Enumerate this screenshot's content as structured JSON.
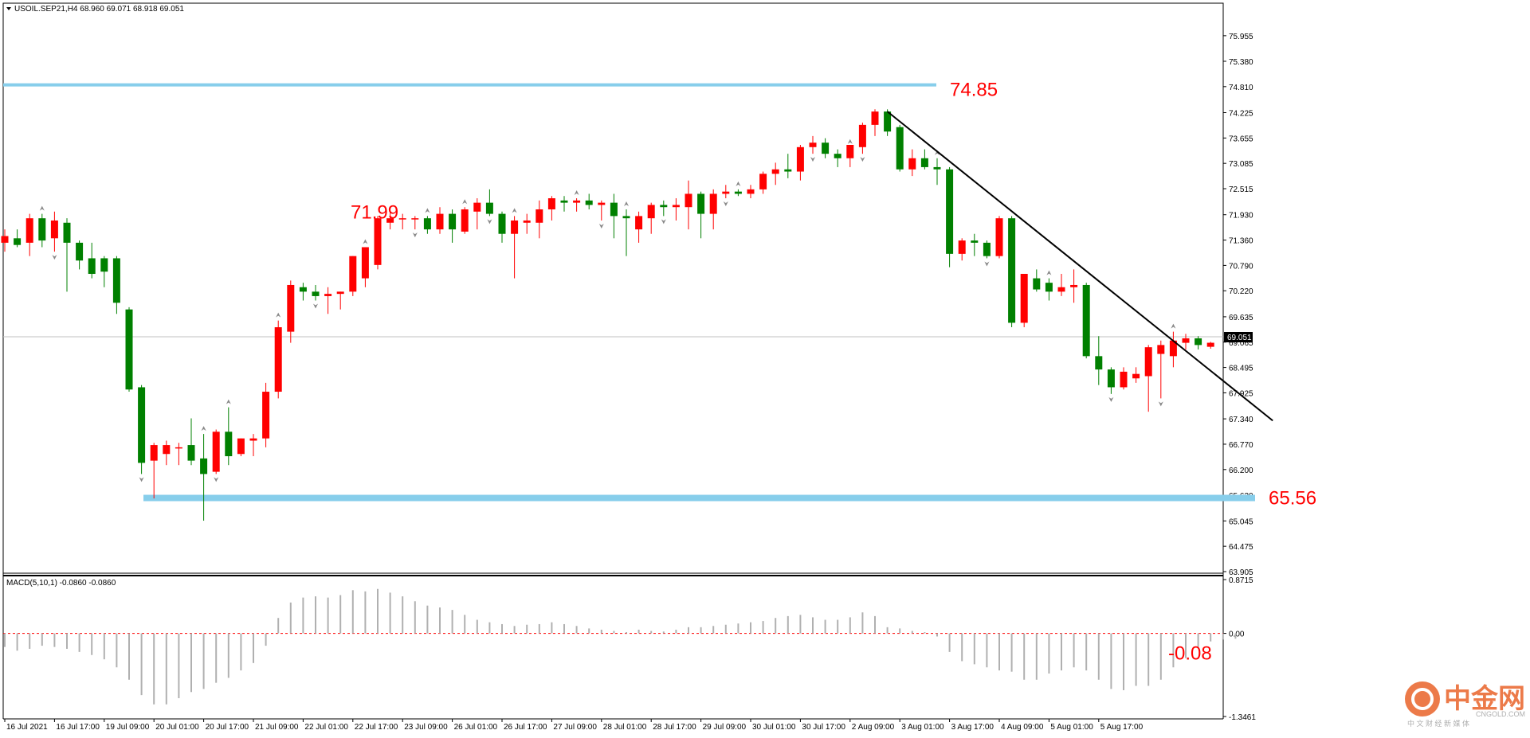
{
  "header": {
    "symbol_line": "USOIL.SEP21,H4  68.960 69.071 68.918 69.051",
    "macd_line": "MACD(5,10,1) -0.0860 -0.0860"
  },
  "watermark": {
    "cn_text": "中金网",
    "url_text": "CNGOLD.COM",
    "slogan": "中 文 财 经 新 媒 体"
  },
  "colors": {
    "bull": "#ff0000",
    "bear": "#008000",
    "level": "#87ceeb",
    "trend": "#000000",
    "annotation": "#ff0000",
    "grid": "#c8c8c8",
    "zero": "#ff0000"
  },
  "chart_data": [
    {
      "type": "candlestick",
      "symbol": "USOIL.SEP21",
      "timeframe": "H4",
      "last_price": "69.051",
      "ylim": [
        63.905,
        76.4
      ],
      "y_ticks": [
        "75.955",
        "75.380",
        "74.810",
        "74.225",
        "73.655",
        "73.085",
        "72.515",
        "71.930",
        "71.360",
        "70.790",
        "70.220",
        "69.635",
        "69.065",
        "68.495",
        "67.925",
        "67.340",
        "66.770",
        "66.200",
        "65.620",
        "65.045",
        "64.475",
        "63.905"
      ],
      "x_ticks": [
        "16 Jul 2021",
        "16 Jul 17:00",
        "19 Jul 09:00",
        "20 Jul 01:00",
        "20 Jul 17:00",
        "21 Jul 09:00",
        "22 Jul 01:00",
        "22 Jul 17:00",
        "23 Jul 09:00",
        "26 Jul 01:00",
        "26 Jul 17:00",
        "27 Jul 09:00",
        "28 Jul 01:00",
        "28 Jul 17:00",
        "29 Jul 09:00",
        "30 Jul 01:00",
        "30 Jul 17:00",
        "2 Aug 09:00",
        "3 Aug 01:00",
        "3 Aug 17:00",
        "4 Aug 09:00",
        "5 Aug 01:00",
        "5 Aug 17:00"
      ],
      "candles": [
        [
          71.3,
          71.6,
          71.1,
          71.45
        ],
        [
          71.4,
          71.6,
          71.2,
          71.25
        ],
        [
          71.3,
          71.95,
          71.0,
          71.85
        ],
        [
          71.85,
          71.95,
          71.2,
          71.35
        ],
        [
          71.4,
          72.0,
          71.1,
          71.8
        ],
        [
          71.75,
          71.85,
          70.2,
          71.3
        ],
        [
          71.3,
          71.35,
          70.7,
          70.9
        ],
        [
          70.95,
          71.3,
          70.5,
          70.6
        ],
        [
          70.95,
          71.0,
          70.3,
          70.65
        ],
        [
          70.95,
          71.0,
          69.7,
          69.95
        ],
        [
          69.8,
          69.85,
          67.95,
          68.0
        ],
        [
          68.05,
          68.1,
          66.1,
          66.35
        ],
        [
          66.4,
          66.8,
          65.55,
          66.75
        ],
        [
          66.55,
          66.85,
          66.3,
          66.75
        ],
        [
          66.7,
          66.8,
          66.3,
          66.7
        ],
        [
          66.75,
          67.35,
          66.3,
          66.4
        ],
        [
          66.45,
          67.0,
          65.05,
          66.1
        ],
        [
          66.15,
          67.1,
          66.1,
          67.05
        ],
        [
          67.05,
          67.6,
          66.3,
          66.5
        ],
        [
          66.55,
          66.9,
          66.5,
          66.9
        ],
        [
          66.85,
          67.0,
          66.5,
          66.9
        ],
        [
          66.9,
          68.15,
          66.7,
          67.95
        ],
        [
          67.95,
          69.55,
          67.8,
          69.4
        ],
        [
          69.3,
          70.45,
          69.05,
          70.35
        ],
        [
          70.3,
          70.4,
          70.0,
          70.2
        ],
        [
          70.2,
          70.35,
          70.0,
          70.1
        ],
        [
          70.1,
          70.3,
          69.7,
          70.15
        ],
        [
          70.15,
          70.2,
          69.8,
          70.2
        ],
        [
          70.2,
          71.0,
          70.1,
          71.0
        ],
        [
          70.5,
          71.2,
          70.3,
          71.2
        ],
        [
          70.8,
          71.9,
          70.7,
          71.85
        ],
        [
          71.75,
          72.0,
          71.6,
          71.85
        ],
        [
          71.85,
          71.95,
          71.6,
          71.85
        ],
        [
          71.85,
          71.9,
          71.6,
          71.85
        ],
        [
          71.85,
          71.9,
          71.5,
          71.6
        ],
        [
          71.6,
          72.1,
          71.5,
          71.95
        ],
        [
          71.95,
          72.05,
          71.3,
          71.6
        ],
        [
          71.55,
          72.1,
          71.5,
          72.05
        ],
        [
          72.0,
          72.3,
          71.6,
          72.2
        ],
        [
          72.2,
          72.5,
          71.9,
          71.95
        ],
        [
          71.95,
          72.0,
          71.3,
          71.5
        ],
        [
          71.5,
          71.9,
          70.5,
          71.8
        ],
        [
          71.75,
          71.95,
          71.5,
          71.8
        ],
        [
          71.75,
          72.25,
          71.4,
          72.05
        ],
        [
          72.05,
          72.35,
          71.8,
          72.3
        ],
        [
          72.25,
          72.35,
          72.0,
          72.2
        ],
        [
          72.2,
          72.3,
          72.0,
          72.25
        ],
        [
          72.25,
          72.4,
          72.05,
          72.15
        ],
        [
          72.15,
          72.25,
          71.8,
          72.2
        ],
        [
          72.2,
          72.4,
          71.4,
          71.9
        ],
        [
          71.9,
          72.05,
          71.0,
          71.85
        ],
        [
          71.6,
          72.0,
          71.3,
          71.9
        ],
        [
          71.85,
          72.2,
          71.5,
          72.15
        ],
        [
          72.15,
          72.25,
          71.9,
          72.1
        ],
        [
          72.1,
          72.3,
          71.8,
          72.15
        ],
        [
          72.1,
          72.7,
          71.6,
          72.4
        ],
        [
          72.4,
          72.45,
          71.4,
          71.95
        ],
        [
          71.95,
          72.5,
          71.6,
          72.4
        ],
        [
          72.4,
          72.6,
          72.3,
          72.45
        ],
        [
          72.45,
          72.5,
          72.35,
          72.4
        ],
        [
          72.4,
          72.6,
          72.3,
          72.5
        ],
        [
          72.5,
          72.9,
          72.4,
          72.85
        ],
        [
          72.85,
          73.1,
          72.6,
          72.95
        ],
        [
          72.95,
          73.3,
          72.75,
          72.9
        ],
        [
          72.9,
          73.5,
          72.7,
          73.45
        ],
        [
          73.45,
          73.7,
          73.3,
          73.55
        ],
        [
          73.55,
          73.65,
          73.2,
          73.3
        ],
        [
          73.3,
          73.4,
          73.0,
          73.2
        ],
        [
          73.2,
          73.45,
          73.0,
          73.5
        ],
        [
          73.45,
          74.0,
          73.3,
          73.95
        ],
        [
          73.95,
          74.3,
          73.7,
          74.25
        ],
        [
          74.25,
          74.3,
          73.7,
          73.8
        ],
        [
          73.9,
          73.95,
          72.9,
          72.95
        ],
        [
          72.95,
          73.4,
          72.8,
          73.2
        ],
        [
          73.2,
          73.4,
          72.95,
          73.0
        ],
        [
          73.0,
          73.2,
          72.6,
          72.95
        ],
        [
          72.95,
          73.0,
          70.75,
          71.05
        ],
        [
          71.05,
          71.4,
          70.9,
          71.35
        ],
        [
          71.35,
          71.5,
          71.0,
          71.3
        ],
        [
          71.3,
          71.35,
          70.95,
          71.0
        ],
        [
          71.0,
          71.9,
          70.95,
          71.85
        ],
        [
          71.85,
          71.9,
          69.4,
          69.5
        ],
        [
          69.5,
          70.6,
          69.4,
          70.6
        ],
        [
          70.5,
          70.7,
          70.2,
          70.25
        ],
        [
          70.4,
          70.5,
          70.0,
          70.2
        ],
        [
          70.2,
          70.6,
          70.1,
          70.3
        ],
        [
          70.3,
          70.7,
          69.95,
          70.35
        ],
        [
          70.35,
          70.4,
          68.7,
          68.75
        ],
        [
          68.75,
          69.2,
          68.1,
          68.45
        ],
        [
          68.45,
          68.5,
          67.9,
          68.05
        ],
        [
          68.05,
          68.5,
          68.0,
          68.4
        ],
        [
          68.25,
          68.5,
          68.15,
          68.35
        ],
        [
          68.3,
          69.0,
          67.5,
          68.95
        ],
        [
          68.8,
          69.1,
          67.8,
          69.0
        ],
        [
          68.75,
          69.3,
          68.5,
          69.1
        ],
        [
          69.05,
          69.25,
          68.9,
          69.15
        ],
        [
          69.15,
          69.2,
          68.9,
          69.0
        ],
        [
          68.96,
          69.071,
          68.918,
          69.051
        ]
      ],
      "fractal_up": [
        3,
        16,
        18,
        22,
        29,
        34,
        37,
        41,
        46,
        50,
        59,
        68,
        75,
        84,
        94
      ],
      "fractal_down": [
        4,
        11,
        17,
        25,
        33,
        39,
        48,
        53,
        58,
        65,
        69,
        79,
        89,
        93
      ],
      "levels": [
        {
          "value": 74.85,
          "label": "74.85"
        },
        {
          "value": 65.56,
          "label": "65.56"
        }
      ],
      "annotations": [
        {
          "value": 71.99,
          "label": "71.99"
        }
      ],
      "trendline": {
        "from": [
          74.25,
          71
        ],
        "to": [
          67.3,
          102
        ]
      }
    },
    {
      "type": "bar",
      "title": "MACD(5,10,1) -0.0860 -0.0860",
      "ylim": [
        -1.3461,
        0.8715
      ],
      "y_ticks": [
        "0.8715",
        "0.00",
        "-1.3461"
      ],
      "zero_line": 0.0,
      "annotation": "-0.08",
      "values": [
        -0.22,
        -0.28,
        -0.25,
        -0.2,
        -0.22,
        -0.25,
        -0.3,
        -0.35,
        -0.42,
        -0.55,
        -0.75,
        -1.0,
        -1.15,
        -1.15,
        -1.05,
        -0.95,
        -0.9,
        -0.8,
        -0.72,
        -0.6,
        -0.48,
        -0.2,
        0.25,
        0.5,
        0.58,
        0.6,
        0.58,
        0.62,
        0.7,
        0.68,
        0.72,
        0.66,
        0.6,
        0.52,
        0.45,
        0.42,
        0.38,
        0.3,
        0.22,
        0.18,
        0.15,
        0.12,
        0.14,
        0.15,
        0.18,
        0.15,
        0.12,
        0.08,
        0.06,
        0.04,
        0.02,
        0.06,
        0.04,
        0.03,
        0.06,
        0.1,
        0.1,
        0.12,
        0.14,
        0.16,
        0.18,
        0.2,
        0.25,
        0.28,
        0.3,
        0.26,
        0.22,
        0.22,
        0.26,
        0.34,
        0.28,
        0.1,
        0.08,
        0.04,
        0.02,
        -0.05,
        -0.3,
        -0.45,
        -0.5,
        -0.55,
        -0.6,
        -0.62,
        -0.75,
        -0.75,
        -0.65,
        -0.6,
        -0.55,
        -0.6,
        -0.75,
        -0.9,
        -0.92,
        -0.85,
        -0.85,
        -0.75,
        -0.55,
        -0.4,
        -0.22,
        -0.13,
        -0.1,
        -0.086
      ]
    }
  ]
}
